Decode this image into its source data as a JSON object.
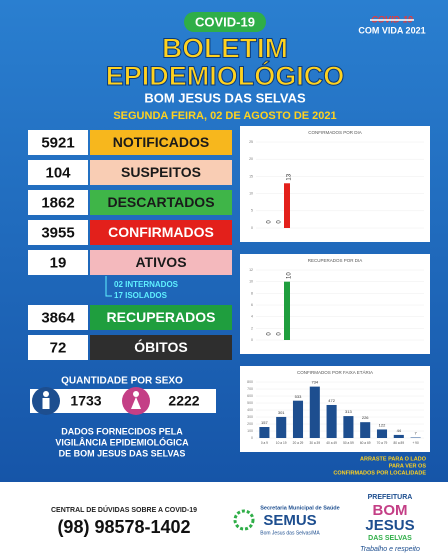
{
  "header": {
    "badge": "COVID-19",
    "title_line1": "BOLETIM",
    "title_line2": "EPIDEMIOLÓGICO",
    "place": "BOM JESUS DAS SELVAS",
    "date": "SEGUNDA FEIRA, 02 DE AGOSTO DE 2021",
    "corner_struck": "COVID-19",
    "corner_text": "COM VIDA 2021"
  },
  "stats": [
    {
      "value": 5921,
      "label": "NOTIFICADOS",
      "color": "#f7b71d",
      "text_color": "#1a1a1a"
    },
    {
      "value": 104,
      "label": "SUSPEITOS",
      "color": "#f9cdb4",
      "text_color": "#1a1a1a"
    },
    {
      "value": 1862,
      "label": "DESCARTADOS",
      "color": "#3fb548",
      "text_color": "#1a1a1a"
    },
    {
      "value": 3955,
      "label": "CONFIRMADOS",
      "color": "#e3201b",
      "text_color": "#ffffff"
    },
    {
      "value": 19,
      "label": "ATIVOS",
      "color": "#f4b9bd",
      "text_color": "#1a1a1a"
    },
    {
      "value": 3864,
      "label": "RECUPERADOS",
      "color": "#1f9e3e",
      "text_color": "#ffffff"
    },
    {
      "value": 72,
      "label": "ÓBITOS",
      "color": "#2e2e2e",
      "text_color": "#ffffff"
    }
  ],
  "ativos_detail": [
    "02 INTERNADOS",
    "17 ISOLADOS"
  ],
  "sex": {
    "title": "QUANTIDADE POR SEXO",
    "male": 1733,
    "female": 2222
  },
  "source": [
    "DADOS FORNECIDOS PELA",
    "VIGILÂNCIA EPIDEMIOLÓGICA",
    "DE BOM JESUS DAS SELVAS"
  ],
  "charts": [
    {
      "type": "bar",
      "title": "CONFIRMADOS POR DIA",
      "categories": [
        null,
        null,
        null
      ],
      "values": [
        0,
        0,
        13
      ],
      "color": "#e3201b",
      "ylim": [
        0,
        25
      ],
      "yticks": [
        0,
        5,
        10,
        15,
        20,
        25
      ]
    },
    {
      "type": "bar",
      "title": "RECUPERADOS POR DIA",
      "categories": [
        null,
        null,
        null
      ],
      "values": [
        0,
        0,
        10
      ],
      "color": "#1f9e3e",
      "ylim": [
        0,
        12
      ],
      "yticks": [
        0,
        2,
        4,
        6,
        8,
        10,
        12
      ]
    },
    {
      "type": "bar",
      "title": "CONFIRMADOS POR FAIXA ETÁRIA",
      "categories": [
        "0 a 9",
        "10 a 19",
        "20 a 29",
        "30 a 39",
        "40 a 49",
        "50 a 59",
        "60 a 69",
        "70 a 79",
        "80 a 89",
        "+ 90"
      ],
      "values": [
        157,
        301,
        533,
        734,
        472,
        313,
        226,
        122,
        44,
        7
      ],
      "color": "#1d4e8f",
      "ylim": [
        0,
        800
      ],
      "yticks": [
        0,
        100,
        200,
        300,
        400,
        500,
        600,
        700,
        800
      ]
    }
  ],
  "swipe_note": [
    "ARRASTE PARA O LADO",
    "PARA VER OS",
    "CONFIRMADOS POR LOCALIDADE"
  ],
  "footer": {
    "help_title": "CENTRAL DE DÚVIDAS SOBRE A COVID-19",
    "phone": "(98) 98578-1402",
    "semus_sub": "Secretaria Municipal de Saúde",
    "semus": "SEMUS",
    "semus_place": "Bom Jesus das Selvas/MA",
    "pref": "PREFEITURA",
    "pref_1": "BOM",
    "pref_2": "JESUS",
    "pref_3": "DAS SELVAS",
    "slogan": "Trabalho e respeito"
  }
}
